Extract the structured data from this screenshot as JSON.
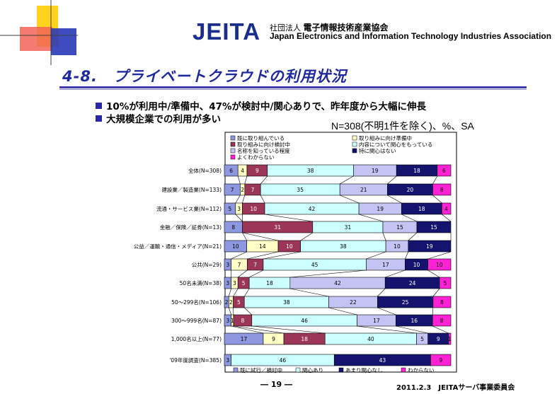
{
  "header": {
    "logo_text": "JEITA",
    "org_name_ja_prefix": "社団法人",
    "org_name_ja": "電子情報技術産業協会",
    "org_name_en": "Japan Electronics and Information Technology Industries Association"
  },
  "slide": {
    "title": "4-8.　プライベートクラウドの利用状況",
    "bullets": [
      "10%が利用中/準備中、47%が検討中/関心ありで、昨年度から大幅に伸長",
      "大規模企業での利用が多い"
    ],
    "note": "N=308(不明1件を除く)、%、SA",
    "footer_page": "― 19 ―",
    "footer_date": "2011.2.3　JEITAサーバ事業委員会"
  },
  "colors": {
    "title": "#1f2a9c",
    "bullet": "#2828a6",
    "deco_yellow": "#ffd21e",
    "deco_red": "#f04a3c",
    "deco_blue": "#2838b8",
    "chart_border": "#000000"
  },
  "chart_data": [
    {
      "type": "bar",
      "orientation": "horizontal",
      "stacked": "100%",
      "legend_position": "top",
      "series": [
        {
          "name": "既に取り組んでいる",
          "color": "#8e98e0"
        },
        {
          "name": "取り組みに向け準備中",
          "color": "#ffffc6"
        },
        {
          "name": "取り組みに向け検討中",
          "color": "#9c3658"
        },
        {
          "name": "内容について関心をもっている",
          "color": "#ccffff"
        },
        {
          "name": "名称を知っている程度",
          "color": "#c4c4f4"
        },
        {
          "name": "特に関心はない",
          "color": "#14146e"
        },
        {
          "name": "よくわからない",
          "color": "#ff22d4"
        }
      ],
      "categories": [
        {
          "label": "全体(N=308)",
          "values": [
            6,
            4,
            9,
            38,
            19,
            18,
            6
          ]
        },
        {
          "label": "建設業／製造業(N=133)",
          "values": [
            7,
            2,
            7,
            35,
            21,
            20,
            8
          ]
        },
        {
          "label": "流通・サービス業(N=112)",
          "values": [
            5,
            3,
            10,
            42,
            19,
            18,
            4
          ]
        },
        {
          "label": "金融／保険／証券(N=13)",
          "values": [
            8,
            0,
            31,
            31,
            15,
            15,
            0
          ]
        },
        {
          "label": "公益／運輸・通信・メディア(N=21)",
          "values": [
            10,
            14,
            10,
            38,
            10,
            19,
            0
          ]
        },
        {
          "label": "公共(N=29)",
          "values": [
            3,
            7,
            7,
            45,
            17,
            10,
            10
          ]
        },
        {
          "label": "50名未満(N=38)",
          "values": [
            3,
            3,
            5,
            18,
            42,
            24,
            5
          ]
        },
        {
          "label": "50～299名(N=106)",
          "values": [
            2,
            2,
            5,
            38,
            22,
            25,
            8
          ]
        },
        {
          "label": "300～999名(N=87)",
          "values": [
            3,
            1,
            8,
            46,
            17,
            16,
            8
          ]
        },
        {
          "label": "1,000名以上(N=77)",
          "values": [
            17,
            9,
            18,
            40,
            5,
            9,
            1
          ]
        }
      ]
    },
    {
      "type": "bar",
      "orientation": "horizontal",
      "stacked": "100%",
      "legend_position": "bottom",
      "series": [
        {
          "name": "既に試行／検討中",
          "color": "#8e98e0"
        },
        {
          "name": "関心あり",
          "color": "#ccffff"
        },
        {
          "name": "あまり関心なし",
          "color": "#14146e"
        },
        {
          "name": "わからない",
          "color": "#ff22d4"
        }
      ],
      "categories": [
        {
          "label": "'09年度調査(N=385)",
          "values": [
            3,
            46,
            43,
            9
          ]
        }
      ]
    }
  ]
}
